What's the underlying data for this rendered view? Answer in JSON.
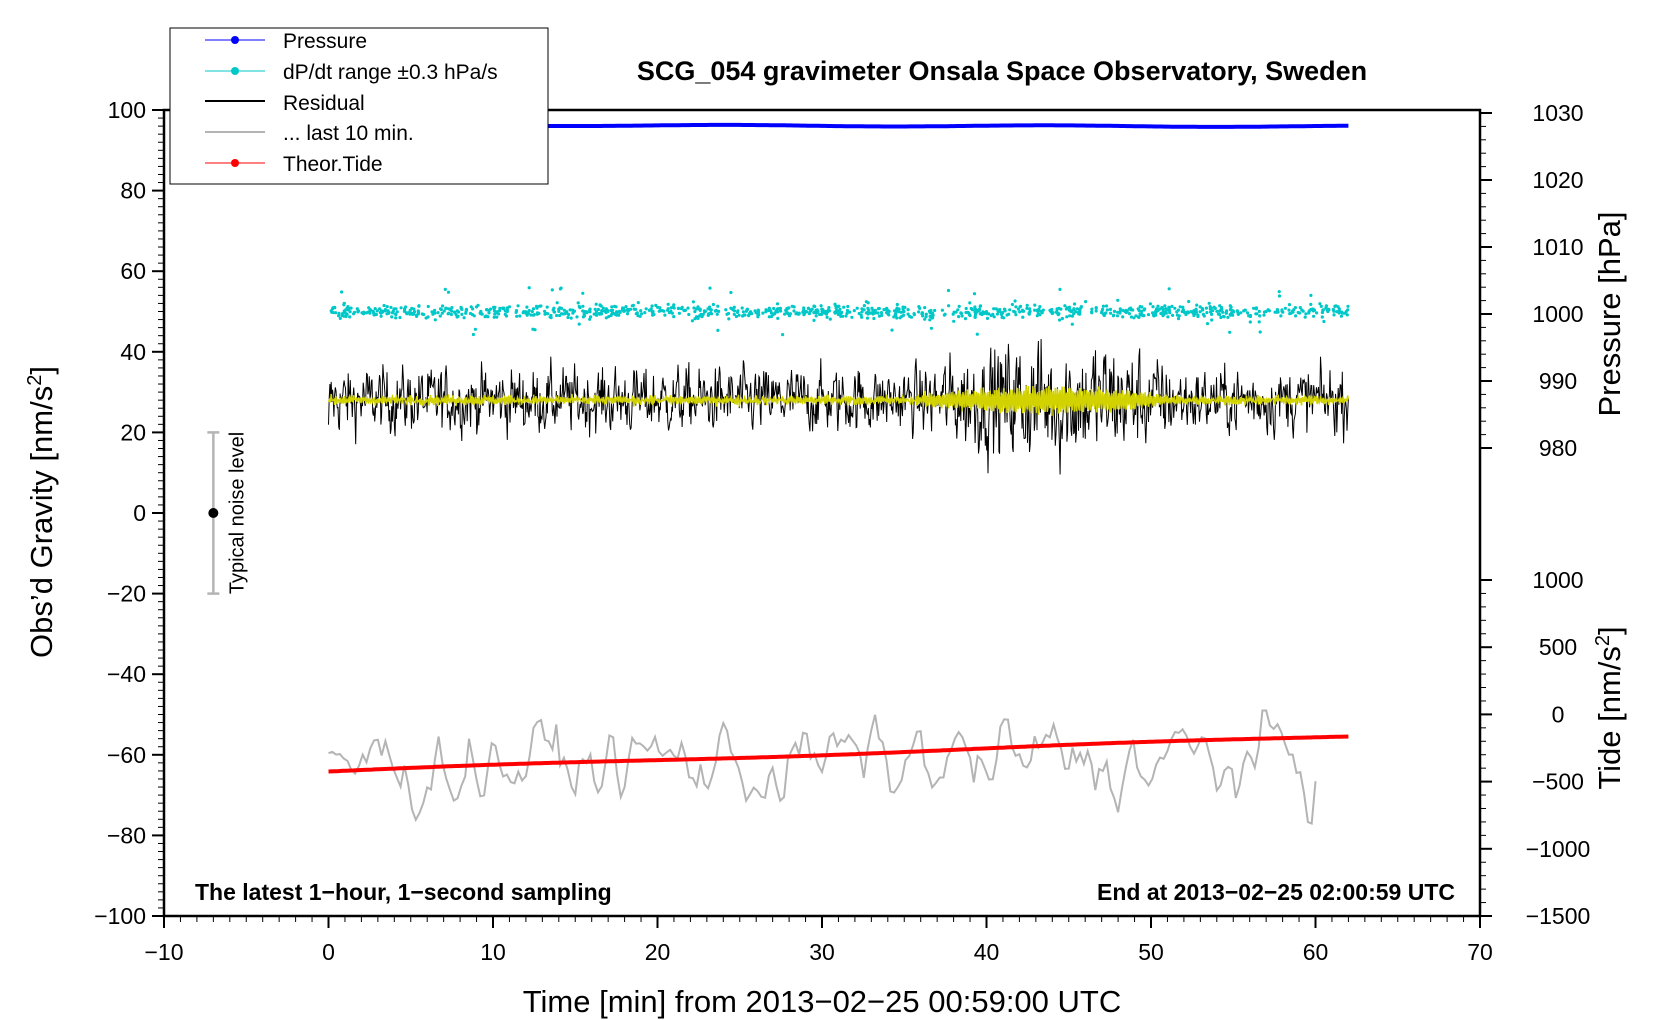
{
  "chart_data": {
    "type": "line",
    "title": "SCG_054 gravimeter Onsala Space Observatory, Sweden",
    "xlabel": "Time [min] from 2013−02−25 00:59:00 UTC",
    "xlim": [
      -10,
      70
    ],
    "xticks": [
      -10,
      0,
      10,
      20,
      30,
      40,
      50,
      60,
      70
    ],
    "xtick_labels": [
      "−10",
      "0",
      "10",
      "20",
      "30",
      "40",
      "50",
      "60",
      "70"
    ],
    "left_axis": {
      "label_main": "Obs’d Gravity [nm/s",
      "label_sup": "2",
      "label_end": "]",
      "ylim": [
        -100,
        100
      ],
      "ticks": [
        100,
        80,
        60,
        40,
        20,
        0,
        -20,
        -40,
        -60,
        -80,
        -100
      ],
      "tick_labels": [
        "100",
        "80",
        "60",
        "40",
        "20",
        "0",
        "−20",
        "−40",
        "−60",
        "−80",
        "−100"
      ]
    },
    "pressure_axis": {
      "label": "Pressure [hPa]",
      "range": [
        980,
        1030
      ],
      "ticks": [
        1030,
        1020,
        1010,
        1000,
        990,
        980
      ],
      "tick_labels": [
        "1030",
        "1020",
        "1010",
        "1000",
        "990",
        "980"
      ]
    },
    "tide_axis": {
      "label_main": "Tide [nm/s",
      "label_sup": "2",
      "label_end": "]",
      "range": [
        -1500,
        1000
      ],
      "ticks": [
        1000,
        500,
        0,
        -500,
        -1000,
        -1500
      ],
      "tick_labels": [
        "1000",
        "500",
        "0",
        "−500",
        "−1000",
        "−1500"
      ]
    },
    "series": [
      {
        "name": "Pressure",
        "color": "#0000ff",
        "axis": "pressure",
        "x_range": [
          0,
          62
        ],
        "start_value": 1028.2,
        "end_value": 1028.0
      },
      {
        "name": "dP/dt range ±0.3 hPa/s",
        "color": "#00c8c8",
        "axis": "left",
        "x_range": [
          0,
          62
        ],
        "center": 50,
        "spread": 2
      },
      {
        "name": "Residual",
        "color": "#000000",
        "axis": "left",
        "x_range": [
          0,
          62
        ],
        "center": 28,
        "amplitude_min": 10,
        "amplitude_max": 24
      },
      {
        "name": "... last 10 min.",
        "color": "#b4b4b4",
        "axis": "left",
        "x_range": [
          0,
          60
        ],
        "center": -62,
        "amplitude": 10
      },
      {
        "name": "Theor.Tide",
        "color": "#ff0000",
        "axis": "tide",
        "x_range": [
          0,
          62
        ],
        "start_value": -425,
        "end_value": -160
      },
      {
        "name": "Residual (smoothed)",
        "color": "#d2d200",
        "axis": "left",
        "x_range": [
          0,
          62
        ],
        "center": 28
      }
    ],
    "legend": {
      "placement": "top-left",
      "entries": [
        "Pressure",
        "dP/dt range ±0.3 hPa/s",
        "Residual",
        "... last 10 min.",
        "Theor.Tide"
      ]
    },
    "noise_level": {
      "label": "Typical noise level",
      "x": -7,
      "center": 0,
      "range": [
        -20,
        20
      ]
    },
    "annotations": {
      "left": "The latest 1−hour, 1−second sampling",
      "right": "End at 2013−02−25 02:00:59 UTC"
    }
  }
}
